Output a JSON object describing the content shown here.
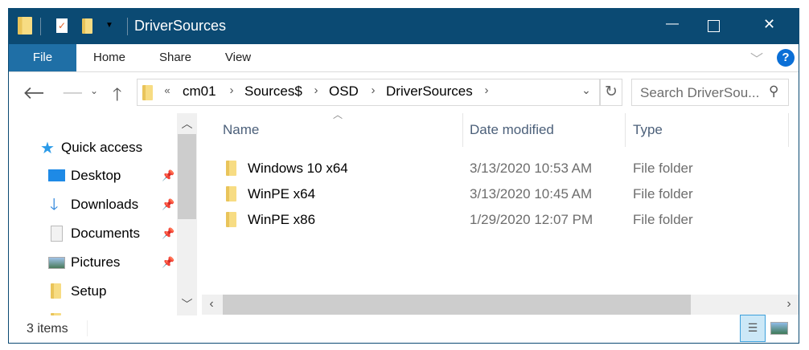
{
  "window": {
    "title": "DriverSources",
    "controls": {
      "minimize": "—",
      "maximize": "☐",
      "close": "✕"
    }
  },
  "ribbon": {
    "tabs": [
      "File",
      "Home",
      "Share",
      "View"
    ],
    "help": "?"
  },
  "address": {
    "overflow": "«",
    "crumbs": [
      "cm01",
      "Sources$",
      "OSD",
      "DriverSources"
    ],
    "search_placeholder": "Search DriverSou..."
  },
  "nav": {
    "quick_access": "Quick access",
    "items": [
      {
        "label": "Desktop",
        "icon": "desktop-icon",
        "pinned": true
      },
      {
        "label": "Downloads",
        "icon": "downloads-icon",
        "pinned": true
      },
      {
        "label": "Documents",
        "icon": "documents-icon",
        "pinned": true
      },
      {
        "label": "Pictures",
        "icon": "pictures-icon",
        "pinned": true
      },
      {
        "label": "Setup",
        "icon": "folder-icon",
        "pinned": false
      }
    ]
  },
  "columns": [
    "Name",
    "Date modified",
    "Type"
  ],
  "files": [
    {
      "name": "Windows 10 x64",
      "date": "3/13/2020 10:53 AM",
      "type": "File folder"
    },
    {
      "name": "WinPE x64",
      "date": "3/13/2020 10:45 AM",
      "type": "File folder"
    },
    {
      "name": "WinPE x86",
      "date": "1/29/2020 12:07 PM",
      "type": "File folder"
    }
  ],
  "status": {
    "count": "3 items",
    "view": "details"
  },
  "colors": {
    "titlebar": "#0b4a73",
    "file_tab": "#1f6fa6",
    "accent": "#0078d7"
  }
}
